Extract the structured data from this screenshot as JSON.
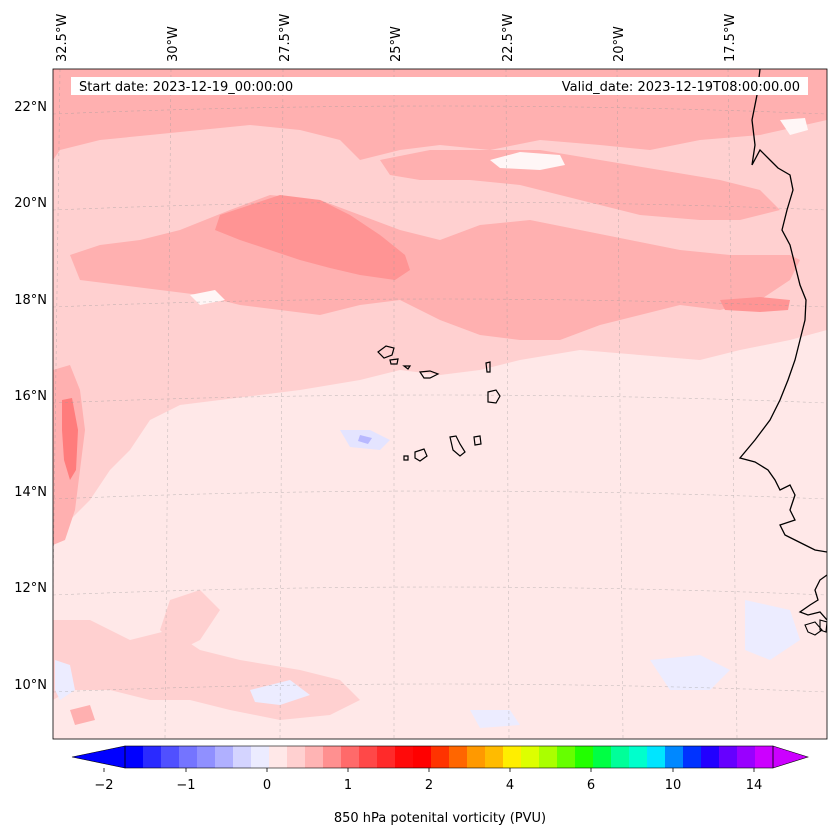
{
  "header": {
    "start_date": "Start date: 2023-12-19_00:00:00",
    "valid_date": "Valid_date: 2023-12-19T08:00:00.00"
  },
  "lon_labels": [
    "32.5°W",
    "30°W",
    "27.5°W",
    "25°W",
    "22.5°W",
    "20°W",
    "17.5°W"
  ],
  "lat_labels": [
    "22°N",
    "20°N",
    "18°N",
    "16°N",
    "14°N",
    "12°N",
    "10°N"
  ],
  "colorbar": {
    "tick_labels": [
      "−2",
      "−1",
      "0",
      "1",
      "2",
      "4",
      "6",
      "10",
      "14"
    ],
    "label": "850 hPa potenital vorticity (PVU)",
    "colors": [
      "#0000ff",
      "#2a2aff",
      "#5050ff",
      "#7474ff",
      "#9090ff",
      "#b0b0ff",
      "#d4d4ff",
      "#ececff",
      "#ffe8e8",
      "#ffd0d0",
      "#ffb4b4",
      "#ff9090",
      "#ff6a6a",
      "#ff4848",
      "#ff2a2a",
      "#ff0a0a",
      "#ff0000",
      "#ff3300",
      "#ff6600",
      "#ff9900",
      "#ffbb00",
      "#ffee00",
      "#ddff00",
      "#aaff00",
      "#66ff00",
      "#22ff00",
      "#00ff44",
      "#00ff99",
      "#00ffcc",
      "#00e5ff",
      "#0088ff",
      "#0033ff",
      "#2200ff",
      "#6600ff",
      "#9900ff",
      "#cc00ff"
    ],
    "under_color": "#0000ff",
    "over_color": "#cc00ff"
  },
  "field_colors": {
    "background": "#ffe8e8",
    "light": "#ffd0d0",
    "mid": "#ffb0b0",
    "strong": "#ff9090",
    "white": "#fff8f8",
    "blue_light": "#ececff",
    "blue": "#b8b8ff"
  }
}
